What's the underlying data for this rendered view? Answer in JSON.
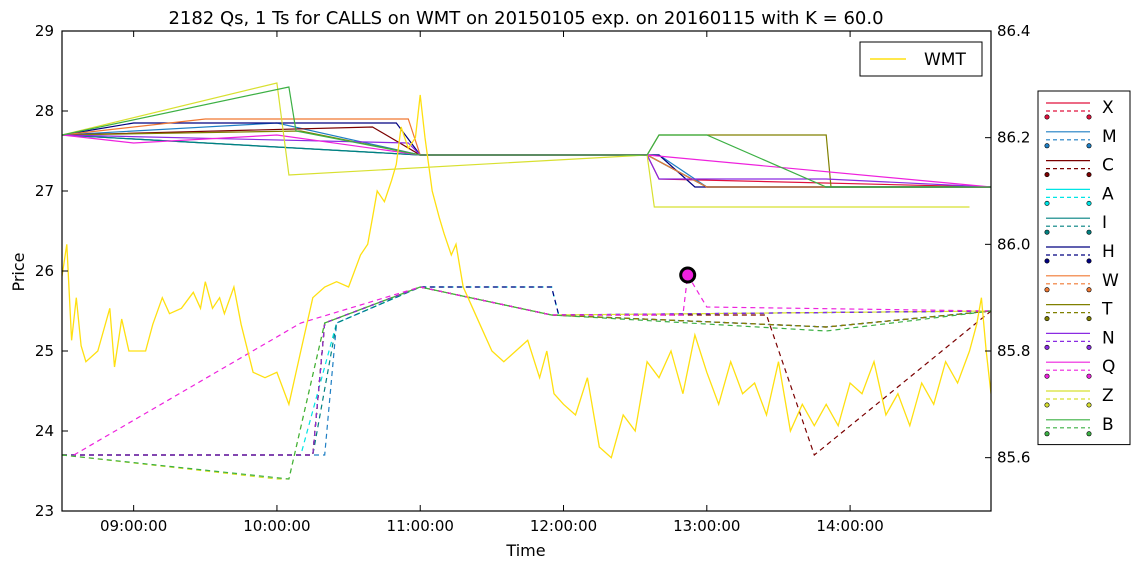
{
  "chart_data": {
    "type": "line",
    "title": "2182 Qs, 1 Ts for CALLS on WMT on 20150105 exp. on 20160115 with K = 60.0",
    "xlabel": "Time",
    "ylabel": "Price",
    "xlim": [
      "08:30:00",
      "14:59:00"
    ],
    "ylim": [
      23,
      29
    ],
    "y2lim": [
      85.5,
      86.4
    ],
    "x_ticks": [
      "09:00:00",
      "10:00:00",
      "11:00:00",
      "12:00:00",
      "13:00:00",
      "14:00:00"
    ],
    "y_ticks": [
      23,
      24,
      25,
      26,
      27,
      28,
      29
    ],
    "y2_ticks": [
      "85.6",
      "85.8",
      "86.0",
      "86.2",
      "86.4"
    ],
    "grid": false,
    "legend_inner": {
      "position": "top-right",
      "entries": [
        "WMT"
      ]
    },
    "legend_outer": {
      "position": "right",
      "entries": [
        "X",
        "M",
        "C",
        "A",
        "I",
        "H",
        "W",
        "T",
        "N",
        "Q",
        "Z",
        "B"
      ]
    },
    "series_colors": {
      "X": "#e0103c",
      "M": "#1f7fc4",
      "C": "#7b0000",
      "A": "#00e5e5",
      "I": "#008080",
      "H": "#000080",
      "W": "#f07832",
      "T": "#808000",
      "N": "#8a2be2",
      "Q": "#ee22dd",
      "Z": "#d8e030",
      "B": "#3cb044"
    },
    "wmt": {
      "name": "WMT",
      "color": "#ffe010",
      "points": [
        [
          "08:30",
          85.94
        ],
        [
          "08:32",
          86.0
        ],
        [
          "08:34",
          85.82
        ],
        [
          "08:36",
          85.9
        ],
        [
          "08:38",
          85.81
        ],
        [
          "08:40",
          85.78
        ],
        [
          "08:45",
          85.8
        ],
        [
          "08:50",
          85.88
        ],
        [
          "08:52",
          85.77
        ],
        [
          "08:55",
          85.86
        ],
        [
          "08:58",
          85.8
        ],
        [
          "09:00",
          85.8
        ],
        [
          "09:05",
          85.8
        ],
        [
          "09:08",
          85.85
        ],
        [
          "09:12",
          85.9
        ],
        [
          "09:15",
          85.87
        ],
        [
          "09:20",
          85.88
        ],
        [
          "09:25",
          85.91
        ],
        [
          "09:28",
          85.88
        ],
        [
          "09:30",
          85.93
        ],
        [
          "09:33",
          85.88
        ],
        [
          "09:36",
          85.9
        ],
        [
          "09:38",
          85.87
        ],
        [
          "09:42",
          85.92
        ],
        [
          "09:45",
          85.85
        ],
        [
          "09:50",
          85.76
        ],
        [
          "09:55",
          85.75
        ],
        [
          "10:00",
          85.76
        ],
        [
          "10:05",
          85.7
        ],
        [
          "10:10",
          85.8
        ],
        [
          "10:15",
          85.9
        ],
        [
          "10:20",
          85.92
        ],
        [
          "10:25",
          85.93
        ],
        [
          "10:30",
          85.92
        ],
        [
          "10:35",
          85.98
        ],
        [
          "10:38",
          86.0
        ],
        [
          "10:40",
          86.05
        ],
        [
          "10:42",
          86.1
        ],
        [
          "10:45",
          86.08
        ],
        [
          "10:48",
          86.12
        ],
        [
          "10:50",
          86.15
        ],
        [
          "10:52",
          86.22
        ],
        [
          "10:55",
          86.18
        ],
        [
          "10:58",
          86.2
        ],
        [
          "11:00",
          86.28
        ],
        [
          "11:02",
          86.2
        ],
        [
          "11:05",
          86.1
        ],
        [
          "11:08",
          86.05
        ],
        [
          "11:10",
          86.02
        ],
        [
          "11:13",
          85.98
        ],
        [
          "11:15",
          86.0
        ],
        [
          "11:18",
          85.92
        ],
        [
          "11:20",
          85.9
        ],
        [
          "11:25",
          85.85
        ],
        [
          "11:30",
          85.8
        ],
        [
          "11:35",
          85.78
        ],
        [
          "11:40",
          85.8
        ],
        [
          "11:45",
          85.82
        ],
        [
          "11:50",
          85.75
        ],
        [
          "11:53",
          85.8
        ],
        [
          "11:56",
          85.72
        ],
        [
          "12:00",
          85.7
        ],
        [
          "12:05",
          85.68
        ],
        [
          "12:10",
          85.75
        ],
        [
          "12:15",
          85.62
        ],
        [
          "12:20",
          85.6
        ],
        [
          "12:25",
          85.68
        ],
        [
          "12:30",
          85.65
        ],
        [
          "12:35",
          85.78
        ],
        [
          "12:40",
          85.75
        ],
        [
          "12:45",
          85.8
        ],
        [
          "12:50",
          85.72
        ],
        [
          "12:55",
          85.83
        ],
        [
          "13:00",
          85.76
        ],
        [
          "13:05",
          85.7
        ],
        [
          "13:10",
          85.78
        ],
        [
          "13:15",
          85.72
        ],
        [
          "13:20",
          85.74
        ],
        [
          "13:25",
          85.68
        ],
        [
          "13:30",
          85.78
        ],
        [
          "13:35",
          85.65
        ],
        [
          "13:40",
          85.7
        ],
        [
          "13:45",
          85.66
        ],
        [
          "13:50",
          85.7
        ],
        [
          "13:55",
          85.66
        ],
        [
          "14:00",
          85.74
        ],
        [
          "14:05",
          85.72
        ],
        [
          "14:10",
          85.78
        ],
        [
          "14:15",
          85.68
        ],
        [
          "14:20",
          85.72
        ],
        [
          "14:25",
          85.66
        ],
        [
          "14:30",
          85.74
        ],
        [
          "14:35",
          85.7
        ],
        [
          "14:40",
          85.78
        ],
        [
          "14:45",
          85.74
        ],
        [
          "14:50",
          85.8
        ],
        [
          "14:53",
          85.85
        ],
        [
          "14:55",
          85.9
        ],
        [
          "14:57",
          85.8
        ],
        [
          "14:59",
          85.72
        ]
      ]
    },
    "series": [
      {
        "name": "X",
        "ask": [
          [
            "08:30",
            27.7
          ],
          [
            "09:30",
            27.6
          ],
          [
            "10:00",
            27.55
          ],
          [
            "11:00",
            27.45
          ],
          [
            "12:35",
            27.45
          ],
          [
            "12:40",
            27.15
          ],
          [
            "14:59",
            27.05
          ]
        ],
        "bid": [
          [
            "08:30",
            23.7
          ],
          [
            "10:15",
            23.7
          ],
          [
            "10:20",
            25.35
          ],
          [
            "11:00",
            25.8
          ],
          [
            "11:55",
            25.45
          ],
          [
            "13:50",
            25.3
          ],
          [
            "14:59",
            25.5
          ]
        ]
      },
      {
        "name": "M",
        "ask": [
          [
            "08:30",
            27.7
          ],
          [
            "10:00",
            27.85
          ],
          [
            "11:00",
            27.45
          ],
          [
            "12:35",
            27.45
          ],
          [
            "12:40",
            27.45
          ],
          [
            "13:00",
            27.05
          ],
          [
            "14:59",
            27.05
          ]
        ],
        "bid": [
          [
            "08:30",
            23.7
          ],
          [
            "10:20",
            23.7
          ],
          [
            "10:25",
            25.35
          ],
          [
            "11:00",
            25.8
          ],
          [
            "11:55",
            25.45
          ],
          [
            "13:50",
            25.3
          ],
          [
            "14:59",
            25.5
          ]
        ]
      },
      {
        "name": "C",
        "ask": [
          [
            "08:30",
            27.7
          ],
          [
            "10:40",
            27.8
          ],
          [
            "11:00",
            27.45
          ],
          [
            "12:35",
            27.45
          ],
          [
            "13:00",
            27.05
          ],
          [
            "13:40",
            27.05
          ],
          [
            "13:50",
            27.05
          ],
          [
            "14:59",
            27.05
          ]
        ],
        "bid": [
          [
            "08:30",
            23.7
          ],
          [
            "10:15",
            23.7
          ],
          [
            "10:20",
            25.35
          ],
          [
            "11:00",
            25.8
          ],
          [
            "11:55",
            25.45
          ],
          [
            "13:25",
            25.45
          ],
          [
            "13:45",
            23.7
          ],
          [
            "14:59",
            25.5
          ]
        ]
      },
      {
        "name": "A",
        "ask": [
          [
            "08:30",
            27.7
          ],
          [
            "11:00",
            27.45
          ],
          [
            "12:35",
            27.45
          ],
          [
            "13:00",
            27.05
          ],
          [
            "14:59",
            27.05
          ]
        ],
        "bid": [
          [
            "08:30",
            23.7
          ],
          [
            "10:10",
            23.7
          ],
          [
            "10:25",
            25.35
          ],
          [
            "11:00",
            25.8
          ],
          [
            "11:55",
            25.8
          ],
          [
            "11:58",
            25.45
          ],
          [
            "14:59",
            25.5
          ]
        ]
      },
      {
        "name": "I",
        "ask": [
          [
            "08:30",
            27.7
          ],
          [
            "11:00",
            27.45
          ],
          [
            "12:35",
            27.45
          ],
          [
            "13:00",
            27.05
          ],
          [
            "14:59",
            27.05
          ]
        ],
        "bid": [
          [
            "08:30",
            23.7
          ],
          [
            "10:15",
            23.7
          ],
          [
            "10:25",
            25.35
          ],
          [
            "11:00",
            25.8
          ],
          [
            "11:55",
            25.45
          ],
          [
            "13:50",
            25.3
          ],
          [
            "14:59",
            25.5
          ]
        ]
      },
      {
        "name": "H",
        "ask": [
          [
            "08:30",
            27.7
          ],
          [
            "09:00",
            27.85
          ],
          [
            "10:50",
            27.85
          ],
          [
            "11:00",
            27.45
          ],
          [
            "12:35",
            27.45
          ],
          [
            "12:40",
            27.45
          ],
          [
            "12:55",
            27.05
          ],
          [
            "14:59",
            27.05
          ]
        ],
        "bid": [
          [
            "08:30",
            23.7
          ],
          [
            "10:15",
            23.7
          ],
          [
            "10:20",
            25.35
          ],
          [
            "11:00",
            25.8
          ],
          [
            "11:55",
            25.8
          ],
          [
            "11:58",
            25.45
          ],
          [
            "14:59",
            25.5
          ]
        ]
      },
      {
        "name": "W",
        "ask": [
          [
            "08:30",
            27.7
          ],
          [
            "09:30",
            27.9
          ],
          [
            "10:55",
            27.9
          ],
          [
            "11:00",
            27.45
          ],
          [
            "12:35",
            27.45
          ],
          [
            "13:00",
            27.05
          ],
          [
            "14:59",
            27.05
          ]
        ],
        "bid": [
          [
            "08:30",
            23.7
          ],
          [
            "10:15",
            23.7
          ],
          [
            "10:20",
            25.35
          ],
          [
            "11:00",
            25.8
          ],
          [
            "11:55",
            25.45
          ],
          [
            "13:50",
            25.3
          ],
          [
            "14:59",
            25.5
          ]
        ]
      },
      {
        "name": "T",
        "ask": [
          [
            "08:30",
            27.7
          ],
          [
            "10:10",
            27.75
          ],
          [
            "11:00",
            27.45
          ],
          [
            "12:35",
            27.45
          ],
          [
            "12:40",
            27.7
          ],
          [
            "13:50",
            27.7
          ],
          [
            "13:52",
            27.05
          ],
          [
            "14:59",
            27.05
          ]
        ],
        "bid": [
          [
            "08:30",
            23.7
          ],
          [
            "10:15",
            23.7
          ],
          [
            "10:20",
            25.35
          ],
          [
            "11:00",
            25.8
          ],
          [
            "11:55",
            25.45
          ],
          [
            "13:50",
            25.3
          ],
          [
            "14:59",
            25.5
          ]
        ]
      },
      {
        "name": "N",
        "ask": [
          [
            "08:30",
            27.7
          ],
          [
            "10:55",
            27.6
          ],
          [
            "11:00",
            27.45
          ],
          [
            "12:35",
            27.45
          ],
          [
            "12:40",
            27.15
          ],
          [
            "13:50",
            27.15
          ],
          [
            "14:59",
            27.05
          ]
        ],
        "bid": [
          [
            "08:30",
            23.7
          ],
          [
            "10:15",
            23.7
          ],
          [
            "10:20",
            25.35
          ],
          [
            "11:00",
            25.8
          ],
          [
            "11:55",
            25.45
          ],
          [
            "14:59",
            25.5
          ]
        ]
      },
      {
        "name": "Q",
        "ask": [
          [
            "08:30",
            27.7
          ],
          [
            "09:00",
            27.6
          ],
          [
            "10:00",
            27.7
          ],
          [
            "11:00",
            27.45
          ],
          [
            "12:35",
            27.45
          ],
          [
            "14:59",
            27.05
          ]
        ],
        "bid": [
          [
            "08:35",
            23.7
          ],
          [
            "10:10",
            25.35
          ],
          [
            "11:00",
            25.8
          ],
          [
            "11:55",
            25.45
          ],
          [
            "12:50",
            25.45
          ],
          [
            "12:52",
            25.95
          ],
          [
            "13:00",
            25.55
          ],
          [
            "14:59",
            25.5
          ]
        ]
      },
      {
        "name": "Z",
        "ask": [
          [
            "08:30",
            27.7
          ],
          [
            "10:00",
            28.35
          ],
          [
            "10:05",
            27.2
          ],
          [
            "12:35",
            27.45
          ],
          [
            "12:38",
            26.8
          ],
          [
            "14:50",
            26.8
          ]
        ],
        "bid": [
          [
            "08:30",
            23.7
          ],
          [
            "10:00",
            23.4
          ],
          [
            "10:05",
            23.4
          ],
          [
            "10:20",
            25.35
          ],
          [
            "11:00",
            25.8
          ],
          [
            "11:55",
            25.45
          ],
          [
            "14:59",
            25.5
          ]
        ]
      },
      {
        "name": "B",
        "ask": [
          [
            "08:30",
            27.7
          ],
          [
            "10:05",
            28.3
          ],
          [
            "10:08",
            27.75
          ],
          [
            "11:00",
            27.45
          ],
          [
            "12:35",
            27.45
          ],
          [
            "12:40",
            27.7
          ],
          [
            "13:00",
            27.7
          ],
          [
            "13:50",
            27.05
          ],
          [
            "14:59",
            27.05
          ]
        ],
        "bid": [
          [
            "08:30",
            23.7
          ],
          [
            "10:05",
            23.4
          ],
          [
            "10:20",
            25.35
          ],
          [
            "11:00",
            25.8
          ],
          [
            "11:55",
            25.45
          ],
          [
            "13:50",
            25.25
          ],
          [
            "14:59",
            25.5
          ]
        ]
      }
    ],
    "trade_marker": {
      "time": "12:52",
      "price": 25.95,
      "color": "#ee22dd"
    }
  }
}
